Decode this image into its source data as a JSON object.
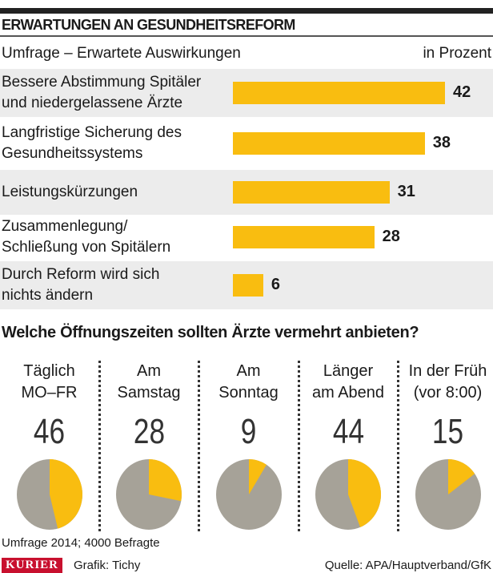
{
  "title": "ERWARTUNGEN AN GESUNDHEITSREFORM",
  "chart_data": [
    {
      "type": "bar",
      "orientation": "horizontal",
      "subtitle": "Umfrage – Erwartete Auswirkungen",
      "unit": "in Prozent",
      "categories": [
        [
          "Bessere Abstimmung Spitäler",
          "und niedergelassene Ärzte"
        ],
        [
          "Langfristige Sicherung des",
          "Gesundheitssystems"
        ],
        [
          "Leistungskürzungen"
        ],
        [
          "Zusammenlegung/",
          "Schließung von Spitälern"
        ],
        [
          "Durch Reform wird sich",
          "nichts ändern"
        ]
      ],
      "values": [
        42,
        38,
        31,
        28,
        6
      ],
      "color": "#f9bd10"
    },
    {
      "type": "pie",
      "title": "Welche Öffnungszeiten sollten Ärzte vermehrt anbieten?",
      "categories": [
        [
          "Täglich",
          "MO–FR"
        ],
        [
          "Am",
          "Samstag"
        ],
        [
          "Am",
          "Sonntag"
        ],
        [
          "Länger",
          "am Abend"
        ],
        [
          "In der Früh",
          "(vor 8:00)"
        ]
      ],
      "values": [
        46,
        28,
        9,
        44,
        15
      ],
      "colors": {
        "share": "#f9bd10",
        "rest": "#a6a298"
      }
    }
  ],
  "footer": {
    "note": "Umfrage 2014; 4000 Befragte",
    "logo": "KURIER",
    "credit": "Grafik: Tichy",
    "source": "Quelle: APA/Hauptverband/GfK"
  }
}
